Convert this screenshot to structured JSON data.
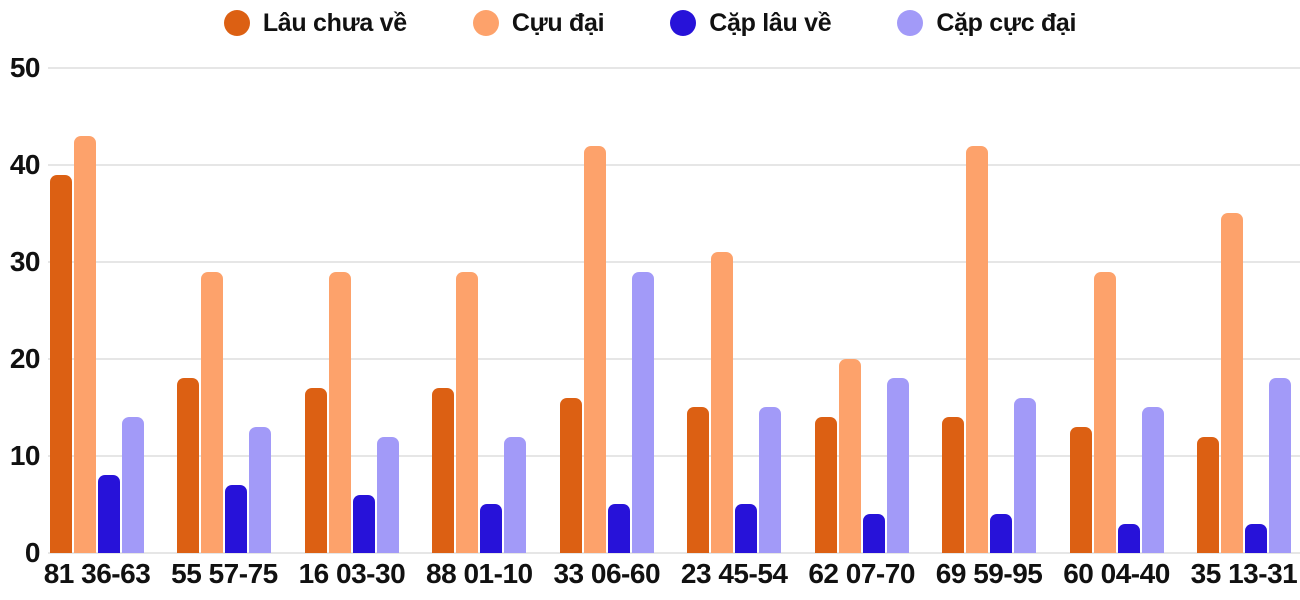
{
  "chart_data": {
    "type": "bar",
    "title": "",
    "xlabel": "",
    "ylabel": "",
    "categories": [
      "81 36-63",
      "55 57-75",
      "16 03-30",
      "88 01-10",
      "33 06-60",
      "23 45-54",
      "62 07-70",
      "69 59-95",
      "60 04-40",
      "35 13-31"
    ],
    "series": [
      {
        "name": "Lâu chưa về",
        "color": "#dc6013",
        "values": [
          39,
          18,
          17,
          17,
          16,
          15,
          14,
          14,
          13,
          12
        ]
      },
      {
        "name": "Cựu đại",
        "color": "#fda26b",
        "values": [
          43,
          29,
          29,
          29,
          42,
          31,
          20,
          42,
          29,
          35
        ]
      },
      {
        "name": "Cặp lâu về",
        "color": "#2712d9",
        "values": [
          8,
          7,
          6,
          5,
          5,
          5,
          4,
          4,
          3,
          3
        ]
      },
      {
        "name": "Cặp cực đại",
        "color": "#a29af8",
        "values": [
          14,
          13,
          12,
          12,
          29,
          15,
          18,
          16,
          15,
          18
        ]
      }
    ],
    "yticks": [
      0,
      10,
      20,
      30,
      40,
      50
    ],
    "ylim": [
      0,
      50
    ],
    "grid": true,
    "legend_position": "top",
    "colors": {
      "text": "#111111",
      "gridline": "#e6e6e6",
      "background": "#ffffff"
    }
  }
}
